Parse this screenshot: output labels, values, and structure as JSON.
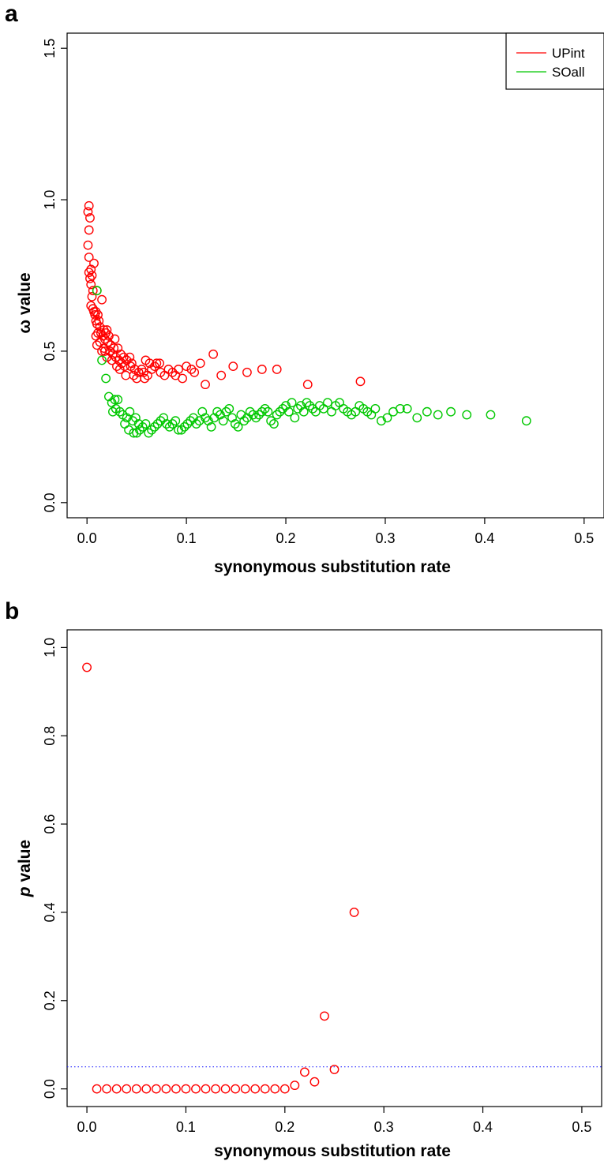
{
  "colors": {
    "UPint": "#ff0000",
    "SOall": "#00c800",
    "threshold": "#2222ff"
  },
  "chart_data": [
    {
      "panel_label": "a",
      "type": "scatter",
      "xlabel": "synonymous substitution rate",
      "ylabel": "ω value",
      "xlim": [
        -0.02,
        0.52
      ],
      "ylim": [
        -0.05,
        1.55
      ],
      "xticks": [
        0.0,
        0.1,
        0.2,
        0.3,
        0.4,
        0.5
      ],
      "xtick_labels": [
        "0.0",
        "0.1",
        "0.2",
        "0.3",
        "0.4",
        "0.5"
      ],
      "yticks": [
        0.0,
        0.5,
        1.0,
        1.5
      ],
      "ytick_labels": [
        "0.0",
        "0.5",
        "1.0",
        "1.5"
      ],
      "legend": {
        "position": "top-right",
        "entries": [
          "UPint",
          "SOall"
        ]
      },
      "series": [
        {
          "name": "UPint",
          "color": "#ff0000",
          "points": [
            [
              0.002,
              0.98
            ],
            [
              0.001,
              0.96
            ],
            [
              0.003,
              0.94
            ],
            [
              0.002,
              0.9
            ],
            [
              0.001,
              0.85
            ],
            [
              0.002,
              0.81
            ],
            [
              0.007,
              0.79
            ],
            [
              0.004,
              0.77
            ],
            [
              0.002,
              0.76
            ],
            [
              0.005,
              0.75
            ],
            [
              0.003,
              0.74
            ],
            [
              0.004,
              0.72
            ],
            [
              0.006,
              0.7
            ],
            [
              0.01,
              0.7
            ],
            [
              0.005,
              0.68
            ],
            [
              0.015,
              0.67
            ],
            [
              0.004,
              0.65
            ],
            [
              0.006,
              0.64
            ],
            [
              0.007,
              0.63
            ],
            [
              0.009,
              0.63
            ],
            [
              0.008,
              0.62
            ],
            [
              0.011,
              0.62
            ],
            [
              0.009,
              0.6
            ],
            [
              0.012,
              0.6
            ],
            [
              0.01,
              0.59
            ],
            [
              0.013,
              0.58
            ],
            [
              0.017,
              0.57
            ],
            [
              0.02,
              0.57
            ],
            [
              0.011,
              0.56
            ],
            [
              0.014,
              0.56
            ],
            [
              0.019,
              0.56
            ],
            [
              0.022,
              0.55
            ],
            [
              0.009,
              0.55
            ],
            [
              0.016,
              0.55
            ],
            [
              0.018,
              0.54
            ],
            [
              0.028,
              0.54
            ],
            [
              0.013,
              0.53
            ],
            [
              0.021,
              0.53
            ],
            [
              0.01,
              0.52
            ],
            [
              0.024,
              0.52
            ],
            [
              0.017,
              0.51
            ],
            [
              0.027,
              0.51
            ],
            [
              0.031,
              0.51
            ],
            [
              0.018,
              0.5
            ],
            [
              0.023,
              0.5
            ],
            [
              0.015,
              0.5
            ],
            [
              0.034,
              0.49
            ],
            [
              0.026,
              0.49
            ],
            [
              0.02,
              0.48
            ],
            [
              0.029,
              0.48
            ],
            [
              0.037,
              0.48
            ],
            [
              0.043,
              0.48
            ],
            [
              0.025,
              0.47
            ],
            [
              0.032,
              0.47
            ],
            [
              0.04,
              0.47
            ],
            [
              0.035,
              0.46
            ],
            [
              0.045,
              0.46
            ],
            [
              0.059,
              0.47
            ],
            [
              0.063,
              0.46
            ],
            [
              0.07,
              0.46
            ],
            [
              0.073,
              0.46
            ],
            [
              0.03,
              0.45
            ],
            [
              0.038,
              0.45
            ],
            [
              0.044,
              0.45
            ],
            [
              0.068,
              0.45
            ],
            [
              0.1,
              0.45
            ],
            [
              0.092,
              0.44
            ],
            [
              0.033,
              0.44
            ],
            [
              0.048,
              0.44
            ],
            [
              0.055,
              0.44
            ],
            [
              0.065,
              0.44
            ],
            [
              0.082,
              0.44
            ],
            [
              0.105,
              0.44
            ],
            [
              0.052,
              0.43
            ],
            [
              0.057,
              0.43
            ],
            [
              0.074,
              0.43
            ],
            [
              0.086,
              0.43
            ],
            [
              0.108,
              0.43
            ],
            [
              0.039,
              0.42
            ],
            [
              0.047,
              0.42
            ],
            [
              0.061,
              0.42
            ],
            [
              0.078,
              0.42
            ],
            [
              0.089,
              0.42
            ],
            [
              0.05,
              0.41
            ],
            [
              0.058,
              0.41
            ],
            [
              0.096,
              0.41
            ],
            [
              0.114,
              0.46
            ],
            [
              0.127,
              0.49
            ],
            [
              0.119,
              0.39
            ],
            [
              0.135,
              0.42
            ],
            [
              0.147,
              0.45
            ],
            [
              0.161,
              0.43
            ],
            [
              0.176,
              0.44
            ],
            [
              0.191,
              0.44
            ],
            [
              0.222,
              0.39
            ],
            [
              0.275,
              0.4
            ]
          ]
        },
        {
          "name": "SOall",
          "color": "#00c800",
          "points": [
            [
              0.01,
              0.7
            ],
            [
              0.015,
              0.47
            ],
            [
              0.019,
              0.41
            ],
            [
              0.022,
              0.35
            ],
            [
              0.025,
              0.33
            ],
            [
              0.028,
              0.34
            ],
            [
              0.031,
              0.34
            ],
            [
              0.026,
              0.3
            ],
            [
              0.029,
              0.31
            ],
            [
              0.033,
              0.3
            ],
            [
              0.036,
              0.29
            ],
            [
              0.04,
              0.28
            ],
            [
              0.043,
              0.3
            ],
            [
              0.046,
              0.27
            ],
            [
              0.049,
              0.28
            ],
            [
              0.052,
              0.26
            ],
            [
              0.038,
              0.26
            ],
            [
              0.042,
              0.24
            ],
            [
              0.047,
              0.23
            ],
            [
              0.05,
              0.23
            ],
            [
              0.053,
              0.24
            ],
            [
              0.056,
              0.25
            ],
            [
              0.059,
              0.26
            ],
            [
              0.062,
              0.23
            ],
            [
              0.065,
              0.24
            ],
            [
              0.068,
              0.25
            ],
            [
              0.071,
              0.26
            ],
            [
              0.074,
              0.27
            ],
            [
              0.077,
              0.28
            ],
            [
              0.08,
              0.26
            ],
            [
              0.083,
              0.25
            ],
            [
              0.086,
              0.26
            ],
            [
              0.089,
              0.27
            ],
            [
              0.092,
              0.24
            ],
            [
              0.095,
              0.24
            ],
            [
              0.098,
              0.25
            ],
            [
              0.101,
              0.26
            ],
            [
              0.104,
              0.27
            ],
            [
              0.107,
              0.28
            ],
            [
              0.11,
              0.26
            ],
            [
              0.113,
              0.27
            ],
            [
              0.116,
              0.3
            ],
            [
              0.119,
              0.28
            ],
            [
              0.122,
              0.27
            ],
            [
              0.125,
              0.25
            ],
            [
              0.128,
              0.28
            ],
            [
              0.131,
              0.3
            ],
            [
              0.134,
              0.29
            ],
            [
              0.137,
              0.27
            ],
            [
              0.14,
              0.3
            ],
            [
              0.143,
              0.31
            ],
            [
              0.146,
              0.28
            ],
            [
              0.149,
              0.26
            ],
            [
              0.152,
              0.25
            ],
            [
              0.155,
              0.29
            ],
            [
              0.158,
              0.27
            ],
            [
              0.161,
              0.28
            ],
            [
              0.164,
              0.3
            ],
            [
              0.167,
              0.29
            ],
            [
              0.17,
              0.28
            ],
            [
              0.173,
              0.29
            ],
            [
              0.176,
              0.3
            ],
            [
              0.179,
              0.31
            ],
            [
              0.182,
              0.3
            ],
            [
              0.185,
              0.27
            ],
            [
              0.188,
              0.26
            ],
            [
              0.191,
              0.29
            ],
            [
              0.194,
              0.3
            ],
            [
              0.197,
              0.31
            ],
            [
              0.2,
              0.32
            ],
            [
              0.203,
              0.3
            ],
            [
              0.206,
              0.33
            ],
            [
              0.209,
              0.28
            ],
            [
              0.212,
              0.31
            ],
            [
              0.215,
              0.32
            ],
            [
              0.218,
              0.3
            ],
            [
              0.221,
              0.33
            ],
            [
              0.224,
              0.32
            ],
            [
              0.227,
              0.31
            ],
            [
              0.23,
              0.3
            ],
            [
              0.234,
              0.32
            ],
            [
              0.238,
              0.31
            ],
            [
              0.242,
              0.33
            ],
            [
              0.246,
              0.3
            ],
            [
              0.25,
              0.32
            ],
            [
              0.254,
              0.33
            ],
            [
              0.258,
              0.31
            ],
            [
              0.262,
              0.3
            ],
            [
              0.266,
              0.29
            ],
            [
              0.27,
              0.3
            ],
            [
              0.274,
              0.32
            ],
            [
              0.278,
              0.31
            ],
            [
              0.282,
              0.3
            ],
            [
              0.286,
              0.29
            ],
            [
              0.29,
              0.31
            ],
            [
              0.296,
              0.27
            ],
            [
              0.302,
              0.28
            ],
            [
              0.308,
              0.3
            ],
            [
              0.315,
              0.31
            ],
            [
              0.322,
              0.31
            ],
            [
              0.332,
              0.28
            ],
            [
              0.342,
              0.3
            ],
            [
              0.353,
              0.29
            ],
            [
              0.366,
              0.3
            ],
            [
              0.382,
              0.29
            ],
            [
              0.406,
              0.29
            ],
            [
              0.442,
              0.27
            ]
          ]
        }
      ]
    },
    {
      "panel_label": "b",
      "type": "scatter",
      "xlabel": "synonymous substitution rate",
      "ylabel_italic": "p",
      "ylabel_rest": " value",
      "xlim": [
        -0.02,
        0.52
      ],
      "ylim": [
        -0.04,
        1.04
      ],
      "xticks": [
        0.0,
        0.1,
        0.2,
        0.3,
        0.4,
        0.5
      ],
      "xtick_labels": [
        "0.0",
        "0.1",
        "0.2",
        "0.3",
        "0.4",
        "0.5"
      ],
      "yticks": [
        0.0,
        0.2,
        0.4,
        0.6,
        0.8,
        1.0
      ],
      "ytick_labels": [
        "0.0",
        "0.2",
        "0.4",
        "0.6",
        "0.8",
        "1.0"
      ],
      "threshold": 0.05,
      "series": [
        {
          "color": "#ff0000",
          "points": [
            [
              0.0,
              0.955
            ],
            [
              0.01,
              0.0
            ],
            [
              0.02,
              0.0
            ],
            [
              0.03,
              0.0
            ],
            [
              0.04,
              0.0
            ],
            [
              0.05,
              0.0
            ],
            [
              0.06,
              0.0
            ],
            [
              0.07,
              0.0
            ],
            [
              0.08,
              0.0
            ],
            [
              0.09,
              0.0
            ],
            [
              0.1,
              0.0
            ],
            [
              0.11,
              0.0
            ],
            [
              0.12,
              0.0
            ],
            [
              0.13,
              0.0
            ],
            [
              0.14,
              0.0
            ],
            [
              0.15,
              0.0
            ],
            [
              0.16,
              0.0
            ],
            [
              0.17,
              0.0
            ],
            [
              0.18,
              0.0
            ],
            [
              0.19,
              0.0
            ],
            [
              0.2,
              0.0
            ],
            [
              0.21,
              0.008
            ],
            [
              0.22,
              0.038
            ],
            [
              0.23,
              0.016
            ],
            [
              0.24,
              0.165
            ],
            [
              0.25,
              0.044
            ],
            [
              0.27,
              0.4
            ]
          ]
        }
      ]
    }
  ]
}
